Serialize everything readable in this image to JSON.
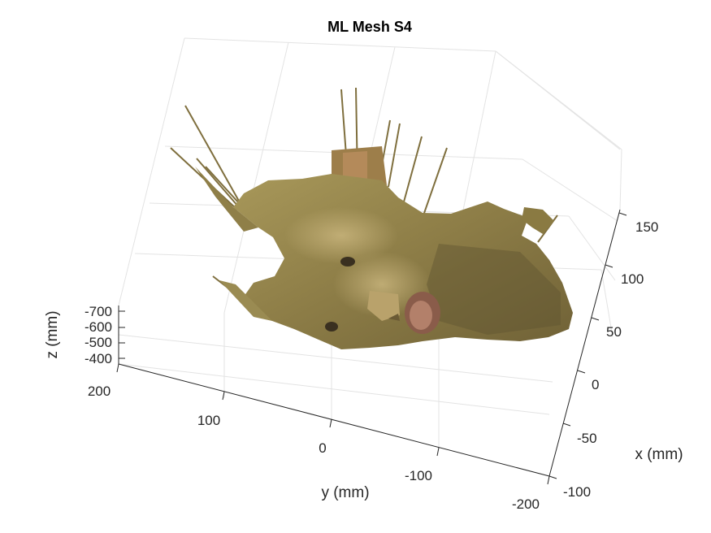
{
  "chart_data": {
    "type": "3d-surface",
    "title": "ML Mesh S4",
    "xlabel": "x (mm)",
    "ylabel": "y (mm)",
    "zlabel": "z (mm)",
    "x_ticks": [
      "-100",
      "-50",
      "0",
      "50",
      "100",
      "150"
    ],
    "y_ticks": [
      "200",
      "100",
      "0",
      "-100",
      "-200"
    ],
    "z_ticks": [
      "-700",
      "-600",
      "-500",
      "-400"
    ],
    "xlim": [
      -100,
      160
    ],
    "ylim": [
      -200,
      200
    ],
    "zlim": [
      -720,
      -380
    ],
    "grid": true,
    "surface": "textured face mesh (skin-tone colormap)"
  }
}
